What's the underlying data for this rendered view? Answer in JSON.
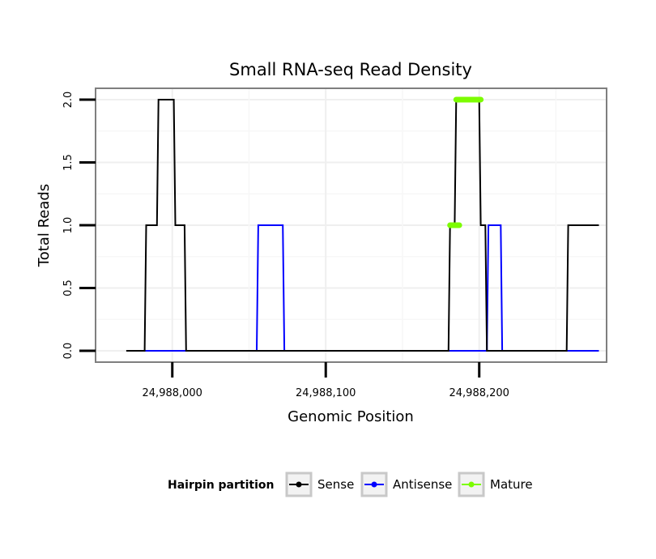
{
  "chart_data": {
    "type": "line",
    "title": "Small RNA-seq Read Density",
    "xlabel": "Genomic Position",
    "ylabel": "Total Reads",
    "xlim": [
      24987950,
      24988283
    ],
    "ylim": [
      -0.09,
      2.09
    ],
    "x_ticks": [
      24988000,
      24988100,
      24988200
    ],
    "x_tick_labels": [
      "24,988,000",
      "24,988,100",
      "24,988,200"
    ],
    "y_ticks": [
      0.0,
      0.5,
      1.0,
      1.5,
      2.0
    ],
    "y_tick_labels": [
      "0.0",
      "0.5",
      "1.0",
      "1.5",
      "2.0"
    ],
    "grid": true,
    "legend": {
      "title": "Hairpin partition",
      "position": "bottom",
      "entries": [
        {
          "label": "Sense",
          "color": "#000000"
        },
        {
          "label": "Antisense",
          "color": "#0000ff"
        },
        {
          "label": "Mature",
          "color": "#7cfc00"
        }
      ]
    },
    "series": [
      {
        "name": "Sense",
        "color": "#000000",
        "x": [
          24987970,
          24987982,
          24987983,
          24987990,
          24987991,
          24988001,
          24988002,
          24988008,
          24988009,
          24988180,
          24988181,
          24988184,
          24988185,
          24988200,
          24988201,
          24988204,
          24988205,
          24988257,
          24988258,
          24988278
        ],
        "y": [
          0,
          0,
          1,
          1,
          2,
          2,
          1,
          1,
          0,
          0,
          1,
          1,
          2,
          2,
          1,
          1,
          0,
          0,
          1,
          1
        ]
      },
      {
        "name": "Antisense",
        "color": "#0000ff",
        "x": [
          24987982,
          24988055,
          24988056,
          24988072,
          24988073,
          24988205,
          24988206,
          24988214,
          24988215,
          24988278
        ],
        "y": [
          0,
          0,
          1,
          1,
          0,
          0,
          1,
          1,
          0,
          0
        ]
      },
      {
        "name": "Mature",
        "color": "#7cfc00",
        "segments": [
          {
            "x": [
              24988181,
              24988187
            ],
            "y": [
              1,
              1
            ]
          },
          {
            "x": [
              24988185,
              24988201
            ],
            "y": [
              2,
              2
            ]
          }
        ]
      }
    ]
  }
}
